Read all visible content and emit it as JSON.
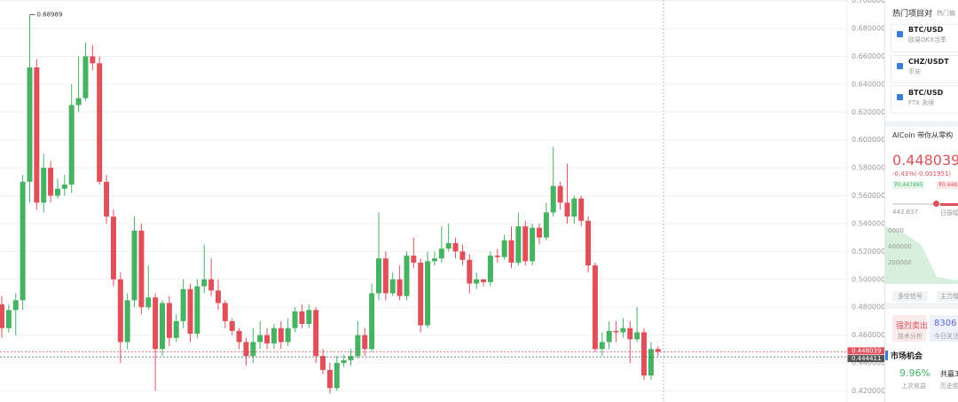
{
  "chart_data": {
    "type": "candlestick",
    "ylim": [
      0.412,
      0.7004
    ],
    "yticks": [
      {
        "value": 0.7,
        "label": "0.700000"
      },
      {
        "value": 0.68,
        "label": "0.680000"
      },
      {
        "value": 0.66,
        "label": "0.660000"
      },
      {
        "value": 0.64,
        "label": "0.640000"
      },
      {
        "value": 0.62,
        "label": "0.620000"
      },
      {
        "value": 0.6,
        "label": "0.600000"
      },
      {
        "value": 0.58,
        "label": "0.580000"
      },
      {
        "value": 0.56,
        "label": "0.560000"
      },
      {
        "value": 0.54,
        "label": "0.540000"
      },
      {
        "value": 0.52,
        "label": "0.520000"
      },
      {
        "value": 0.5,
        "label": "0.500000"
      },
      {
        "value": 0.48,
        "label": "0.480000"
      },
      {
        "value": 0.46,
        "label": "0.460000"
      },
      {
        "value": 0.44,
        "label": "0.440000"
      },
      {
        "value": 0.42,
        "label": "0.420000"
      }
    ],
    "grid": true,
    "up_color": "#47b262",
    "down_color": "#e0505b",
    "open": [
      0.482,
      0.465,
      0.478,
      0.485,
      0.57,
      0.652,
      0.555,
      0.58,
      0.56,
      0.565,
      0.568,
      0.625,
      0.63,
      0.66,
      0.655,
      0.57,
      0.545,
      0.5,
      0.455,
      0.485,
      0.535,
      0.48,
      0.487,
      0.45,
      0.483,
      0.458,
      0.47,
      0.493,
      0.461,
      0.495,
      0.5,
      0.492,
      0.483,
      0.47,
      0.463,
      0.455,
      0.445,
      0.455,
      0.46,
      0.454,
      0.465,
      0.455,
      0.465,
      0.477,
      0.468,
      0.478,
      0.445,
      0.435,
      0.422,
      0.44,
      0.442,
      0.445,
      0.46,
      0.45,
      0.49,
      0.515,
      0.49,
      0.5,
      0.488,
      0.517,
      0.512,
      0.467,
      0.513,
      0.515,
      0.522,
      0.526,
      0.52,
      0.514,
      0.497,
      0.5,
      0.498,
      0.517,
      0.516,
      0.528,
      0.512,
      0.538,
      0.513,
      0.537,
      0.53,
      0.548,
      0.567,
      0.555,
      0.545,
      0.558,
      0.542,
      0.51,
      0.45,
      0.455,
      0.463,
      0.462,
      0.465,
      0.457,
      0.462,
      0.431,
      0.45
    ],
    "high": [
      0.488,
      0.482,
      0.49,
      0.575,
      0.68989,
      0.658,
      0.59,
      0.585,
      0.572,
      0.575,
      0.64,
      0.66,
      0.67,
      0.668,
      0.66,
      0.575,
      0.55,
      0.505,
      0.49,
      0.545,
      0.54,
      0.51,
      0.49,
      0.485,
      0.488,
      0.475,
      0.5,
      0.497,
      0.5,
      0.525,
      0.515,
      0.5,
      0.485,
      0.472,
      0.465,
      0.458,
      0.465,
      0.47,
      0.465,
      0.468,
      0.47,
      0.472,
      0.48,
      0.482,
      0.482,
      0.48,
      0.45,
      0.44,
      0.445,
      0.446,
      0.45,
      0.47,
      0.465,
      0.497,
      0.548,
      0.52,
      0.505,
      0.51,
      0.52,
      0.53,
      0.515,
      0.52,
      0.52,
      0.538,
      0.54,
      0.53,
      0.525,
      0.518,
      0.505,
      0.5,
      0.52,
      0.522,
      0.532,
      0.538,
      0.548,
      0.542,
      0.54,
      0.54,
      0.555,
      0.595,
      0.57,
      0.583,
      0.56,
      0.56,
      0.545,
      0.512,
      0.462,
      0.47,
      0.47,
      0.472,
      0.47,
      0.48,
      0.465,
      0.455,
      0.452
    ],
    "low": [
      0.458,
      0.462,
      0.46,
      0.478,
      0.555,
      0.55,
      0.548,
      0.555,
      0.558,
      0.56,
      0.562,
      0.62,
      0.628,
      0.65,
      0.568,
      0.54,
      0.495,
      0.44,
      0.45,
      0.48,
      0.475,
      0.478,
      0.42,
      0.445,
      0.452,
      0.455,
      0.465,
      0.455,
      0.458,
      0.49,
      0.488,
      0.478,
      0.465,
      0.46,
      0.45,
      0.438,
      0.44,
      0.45,
      0.45,
      0.45,
      0.45,
      0.452,
      0.462,
      0.465,
      0.465,
      0.44,
      0.432,
      0.418,
      0.42,
      0.437,
      0.438,
      0.443,
      0.445,
      0.448,
      0.485,
      0.485,
      0.488,
      0.485,
      0.485,
      0.508,
      0.462,
      0.465,
      0.51,
      0.512,
      0.52,
      0.515,
      0.51,
      0.49,
      0.493,
      0.495,
      0.495,
      0.512,
      0.514,
      0.508,
      0.51,
      0.51,
      0.51,
      0.525,
      0.528,
      0.545,
      0.55,
      0.54,
      0.54,
      0.538,
      0.505,
      0.448,
      0.445,
      0.45,
      0.455,
      0.458,
      0.44,
      0.455,
      0.428,
      0.428,
      0.445
    ],
    "close": [
      0.465,
      0.478,
      0.485,
      0.57,
      0.652,
      0.555,
      0.58,
      0.56,
      0.565,
      0.568,
      0.625,
      0.63,
      0.66,
      0.655,
      0.57,
      0.545,
      0.5,
      0.455,
      0.485,
      0.535,
      0.48,
      0.487,
      0.45,
      0.483,
      0.458,
      0.47,
      0.493,
      0.461,
      0.495,
      0.5,
      0.492,
      0.483,
      0.47,
      0.463,
      0.455,
      0.445,
      0.455,
      0.46,
      0.454,
      0.465,
      0.455,
      0.465,
      0.477,
      0.468,
      0.478,
      0.445,
      0.435,
      0.422,
      0.44,
      0.442,
      0.445,
      0.46,
      0.45,
      0.49,
      0.515,
      0.49,
      0.5,
      0.488,
      0.517,
      0.512,
      0.467,
      0.513,
      0.515,
      0.522,
      0.526,
      0.52,
      0.514,
      0.497,
      0.5,
      0.498,
      0.517,
      0.516,
      0.528,
      0.512,
      0.538,
      0.513,
      0.537,
      0.53,
      0.548,
      0.567,
      0.555,
      0.545,
      0.558,
      0.542,
      0.51,
      0.45,
      0.455,
      0.463,
      0.462,
      0.465,
      0.457,
      0.462,
      0.431,
      0.45,
      0.448
    ],
    "price_lines": [
      {
        "value": 0.448039,
        "color": "#e0505b"
      },
      {
        "value": 0.444411,
        "color": "#555555"
      }
    ]
  },
  "panel": {
    "tabs": [
      "热门项目对",
      "热门偏"
    ],
    "pairs": [
      {
        "symbol": "BTC/USD",
        "exchange": "欧易OKX当季"
      },
      {
        "symbol": "CHZ/USDT",
        "exchange": "币安"
      },
      {
        "symbol": "BTC/USD",
        "exchange": "FTX 永续"
      }
    ],
    "notice": "AICoin 带你从零构",
    "price": "0.448039",
    "change": "-0.43%(-0.001951)",
    "bid": "₮0.447995",
    "ask": "₮0.4481",
    "range_low": "443.637",
    "range_label": "日振幅",
    "depth_labels": [
      "0000",
      "400000",
      "200000"
    ],
    "chips": [
      "多空信号",
      "主力增"
    ],
    "signal": {
      "value": "强烈卖出",
      "label": "技术分析"
    },
    "watch": {
      "value": "8306",
      "label": "今日关注"
    },
    "section": "市场机会",
    "returns": {
      "value": "9.96%",
      "label": "上次收益"
    },
    "wins": {
      "value": "共赢3",
      "label": "历史胜"
    }
  }
}
